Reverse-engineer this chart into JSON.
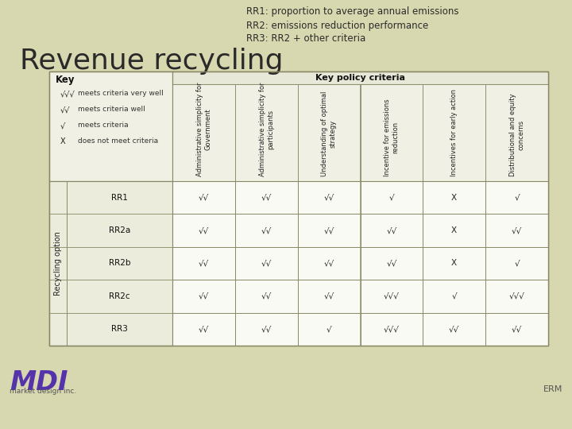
{
  "bg_color": "#d8d8b0",
  "slide_bg": "#d8d8b0",
  "white_bg": "#f5f5f0",
  "title_left": "Revenue recycling",
  "title_right_lines": [
    "RR1: proportion to average annual emissions",
    "RR2: emissions reduction performance",
    "RR3: RR2 + other criteria"
  ],
  "key_symbols": [
    "√√√",
    "√√",
    "√",
    "X"
  ],
  "key_descriptions": [
    "meets criteria very well",
    "meets criteria well",
    "meets criteria",
    "does not meet criteria"
  ],
  "col_headers": [
    "Administrative simplicity for\nGovernment",
    "Administrative simplicity for\nparticipants",
    "Understanding of optimal\nstrategy",
    "Incentive for emissions\nreduction",
    "Incentives for early action",
    "Distributional and equity\nconcerns"
  ],
  "row_labels": [
    "RR1",
    "RR2a",
    "RR2b",
    "RR2c",
    "RR3"
  ],
  "table_data": [
    [
      "√√",
      "√√",
      "√√",
      "√",
      "X",
      "√"
    ],
    [
      "√√",
      "√√",
      "√√",
      "√√",
      "X",
      "√√"
    ],
    [
      "√√",
      "√√",
      "√√",
      "√√",
      "X",
      "√"
    ],
    [
      "√√",
      "√√",
      "√√",
      "√√√",
      "√",
      "√√√"
    ],
    [
      "√√",
      "√√",
      "√",
      "√√√",
      "√√",
      "√√"
    ]
  ],
  "recycling_option_label": "Recycling option",
  "mdi_color": "#5533aa",
  "border_color": "#888866"
}
